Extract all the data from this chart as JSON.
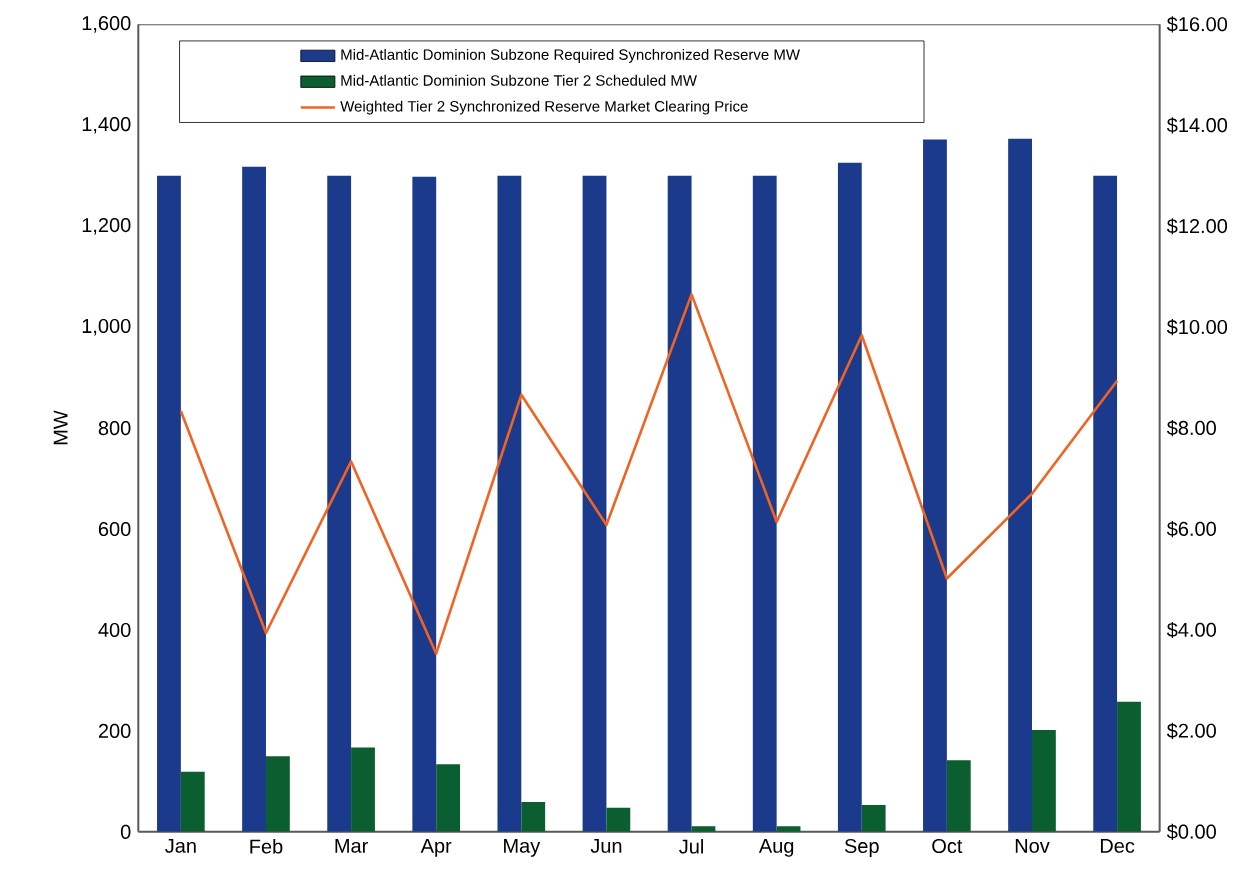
{
  "chart_data": {
    "type": "bar",
    "ylabel": "MW",
    "categories": [
      "Jan",
      "Feb",
      "Mar",
      "Apr",
      "May",
      "Jun",
      "Jul",
      "Aug",
      "Sep",
      "Oct",
      "Nov",
      "Dec"
    ],
    "series": [
      {
        "name": "Mid-Atlantic Dominion Subzone Required Synchronized Reserve MW",
        "color": "#1b3a8c",
        "values": [
          1300,
          1318,
          1300,
          1298,
          1300,
          1300,
          1300,
          1300,
          1326,
          1372,
          1374,
          1300
        ]
      },
      {
        "name": "Mid-Atlantic Dominion Subzone Tier 2 Scheduled MW",
        "color": "#0b5e2f",
        "values": [
          119,
          150,
          167,
          134,
          59,
          48,
          11,
          11,
          53,
          142,
          202,
          258
        ]
      },
      {
        "name": "Weighted Tier 2 Synchronized Reserve Market Clearing Price",
        "type": "line",
        "axis": "y2",
        "color": "#f26322",
        "values": [
          8.34,
          3.94,
          7.34,
          3.53,
          8.66,
          6.08,
          10.65,
          6.14,
          9.84,
          5.02,
          6.7,
          8.94
        ]
      }
    ],
    "ylim": [
      0,
      1600
    ],
    "yticks": [
      {
        "value": 0,
        "label": "0"
      },
      {
        "value": 200,
        "label": "200"
      },
      {
        "value": 400,
        "label": "400"
      },
      {
        "value": 600,
        "label": "600"
      },
      {
        "value": 800,
        "label": "800"
      },
      {
        "value": 1000,
        "label": "1,000"
      },
      {
        "value": 1200,
        "label": "1,200"
      },
      {
        "value": 1400,
        "label": "1,400"
      },
      {
        "value": 1600,
        "label": "1,600"
      }
    ],
    "y2lim": [
      0,
      16
    ],
    "y2ticks": [
      {
        "value": 0,
        "label": "$0.00"
      },
      {
        "value": 2,
        "label": "$2.00"
      },
      {
        "value": 4,
        "label": "$4.00"
      },
      {
        "value": 6,
        "label": "$6.00"
      },
      {
        "value": 8,
        "label": "$8.00"
      },
      {
        "value": 10,
        "label": "$10.00"
      },
      {
        "value": 12,
        "label": "$12.00"
      },
      {
        "value": 14,
        "label": "$14.00"
      },
      {
        "value": 16,
        "label": "$16.00"
      }
    ],
    "legend": "top",
    "grid": false
  }
}
